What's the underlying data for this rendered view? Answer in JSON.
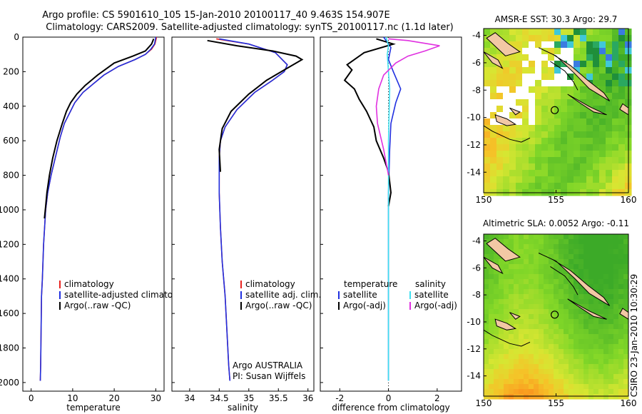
{
  "header": {
    "line1": "Argo profile: CS 5901610_105 15-Jan-2010 20100117_40 9.463S 154.907E",
    "line2": "Climatology: CARS2009. Satellite-adjusted climatology: synTS_20100117.nc (1.1d later)"
  },
  "side_label": "CSIRO 23-Jan-2010 10:30:29",
  "colors": {
    "red": "#e8231f",
    "blue": "#2030e0",
    "black": "#000000",
    "cyan": "#40e0f0",
    "magenta": "#e030e0"
  },
  "chart_data": [
    {
      "type": "line",
      "panel": "temperature",
      "xlabel": "temperature",
      "ylabel": "",
      "xlim": [
        -2,
        32
      ],
      "ylim": [
        2050,
        0
      ],
      "xticks": [
        "0",
        "10",
        "20",
        "30"
      ],
      "yticks": [
        "0",
        "200",
        "400",
        "600",
        "800",
        "1000",
        "1200",
        "1400",
        "1600",
        "1800",
        "2000"
      ],
      "legend": [
        "climatology",
        "satellite-adjusted climatology",
        "Argo(..raw -QC)"
      ],
      "series": [
        {
          "name": "climatology",
          "color": "red",
          "x": [
            30.2,
            29.8,
            29.0,
            27.5,
            25.0,
            21.0,
            17.5,
            15.0,
            12.5,
            10.5,
            8.0,
            7.0,
            5.8,
            4.8,
            4.0,
            3.5,
            3.0,
            2.7,
            2.5,
            2.4,
            2.3,
            2.2
          ],
          "y": [
            0,
            40,
            70,
            100,
            130,
            170,
            220,
            270,
            320,
            380,
            500,
            580,
            700,
            800,
            900,
            1000,
            1200,
            1400,
            1500,
            1700,
            1900,
            1990
          ]
        },
        {
          "name": "satellite-adjusted climatology",
          "color": "blue",
          "x": [
            30.0,
            29.7,
            28.8,
            27.5,
            25.0,
            21.0,
            17.5,
            15.0,
            12.5,
            10.5,
            8.0,
            7.0,
            5.8,
            4.8,
            4.0,
            3.5,
            3.0,
            2.7,
            2.5,
            2.4,
            2.3,
            2.2
          ],
          "y": [
            0,
            40,
            70,
            100,
            130,
            170,
            220,
            270,
            320,
            380,
            500,
            580,
            700,
            800,
            900,
            1000,
            1200,
            1400,
            1500,
            1700,
            1900,
            1990
          ]
        },
        {
          "name": "Argo(..raw -QC)",
          "color": "black",
          "x": [
            29.5,
            29.0,
            27.5,
            24.5,
            20.0,
            16.0,
            13.0,
            11.0,
            9.5,
            8.5,
            7.5,
            6.2,
            5.2,
            4.4,
            3.8,
            3.5,
            3.2
          ],
          "y": [
            10,
            40,
            80,
            110,
            150,
            220,
            280,
            330,
            380,
            430,
            500,
            600,
            700,
            800,
            900,
            980,
            1050
          ]
        }
      ]
    },
    {
      "type": "line",
      "panel": "salinity",
      "xlabel": "salinity",
      "ylabel": "",
      "xlim": [
        33.7,
        36.1
      ],
      "ylim": [
        2050,
        0
      ],
      "xticks": [
        "34",
        "34.5",
        "35",
        "35.5",
        "36"
      ],
      "legend": [
        "climatology",
        "satellite adj. clim.",
        "Argo(..raw -QC)"
      ],
      "annotation": [
        "Argo AUSTRALIA",
        "PI: Susan Wijffels"
      ],
      "series": [
        {
          "name": "climatology",
          "color": "red",
          "x": [
            34.45,
            35.0,
            35.45,
            35.65,
            35.6,
            35.4,
            35.1,
            34.8,
            34.6,
            34.52,
            34.5,
            34.5,
            34.52,
            34.55,
            34.6,
            34.63,
            34.66,
            34.68
          ],
          "y": [
            10,
            40,
            90,
            160,
            200,
            250,
            320,
            420,
            520,
            600,
            700,
            900,
            1100,
            1300,
            1500,
            1700,
            1900,
            1990
          ]
        },
        {
          "name": "satellite adj. clim.",
          "color": "blue",
          "x": [
            34.5,
            35.0,
            35.45,
            35.65,
            35.6,
            35.4,
            35.1,
            34.8,
            34.6,
            34.52,
            34.5,
            34.5,
            34.52,
            34.55,
            34.6,
            34.63,
            34.66,
            34.68
          ],
          "y": [
            10,
            40,
            90,
            160,
            200,
            250,
            320,
            420,
            520,
            600,
            700,
            900,
            1100,
            1300,
            1500,
            1700,
            1900,
            1990
          ]
        },
        {
          "name": "Argo(..raw -QC)",
          "color": "black",
          "x": [
            34.3,
            34.8,
            35.4,
            35.8,
            35.9,
            35.7,
            35.3,
            35.0,
            34.7,
            34.55,
            34.5,
            34.52
          ],
          "y": [
            20,
            50,
            80,
            110,
            130,
            170,
            250,
            330,
            430,
            530,
            650,
            780
          ]
        }
      ]
    },
    {
      "type": "line",
      "panel": "difference",
      "xlabel": "difference from climatology",
      "ylabel": "",
      "xlim": [
        -2.8,
        3.0
      ],
      "ylim": [
        2050,
        0
      ],
      "xticks": [
        "-2",
        "0",
        "2"
      ],
      "legend_left": [
        "temperature",
        "satellite",
        "Argo(-adj)"
      ],
      "legend_right": [
        "salinity",
        "satellite",
        "Argo(-adj)"
      ],
      "series": [
        {
          "name": "temperature satellite",
          "color": "blue",
          "x": [
            -0.2,
            0.1,
            0.0,
            0.2,
            0.5,
            0.3,
            0.1,
            0.05,
            0.0,
            0.0
          ],
          "y": [
            0,
            60,
            130,
            200,
            300,
            380,
            500,
            650,
            900,
            1990
          ]
        },
        {
          "name": "temperature Argo(-adj)",
          "color": "black",
          "x": [
            -0.5,
            0.2,
            -1.0,
            -1.7,
            -1.5,
            -1.8,
            -1.4,
            -1.2,
            -0.9,
            -0.6,
            -0.5,
            -0.2,
            0.0,
            0.1,
            0.0
          ],
          "y": [
            10,
            40,
            90,
            160,
            190,
            250,
            300,
            360,
            430,
            520,
            600,
            700,
            780,
            900,
            980
          ]
        },
        {
          "name": "salinity satellite",
          "color": "cyan",
          "x": [
            -0.1,
            0.0,
            -0.05,
            0.05,
            0.0,
            0.0,
            0.0
          ],
          "y": [
            0,
            50,
            100,
            300,
            600,
            1000,
            1990
          ]
        },
        {
          "name": "salinity Argo(-adj)",
          "color": "magenta",
          "x": [
            0.0,
            0.8,
            2.1,
            1.5,
            0.8,
            0.3,
            -0.2,
            -0.4,
            -0.5,
            -0.45,
            -0.2,
            0.0
          ],
          "y": [
            10,
            20,
            50,
            80,
            110,
            150,
            220,
            300,
            400,
            500,
            650,
            800
          ]
        }
      ]
    },
    {
      "type": "heatmap",
      "panel": "sst-map",
      "title": "AMSR-E SST: 30.3 Argo: 29.7",
      "xticks": [
        "150",
        "155",
        "160"
      ],
      "yticks": [
        "-4",
        "-6",
        "-8",
        "-10",
        "-12",
        "-14"
      ],
      "xlim": [
        150,
        160
      ],
      "ylim": [
        -15.5,
        -3.5
      ],
      "marker": {
        "lon": 154.907,
        "lat": -9.463
      }
    },
    {
      "type": "heatmap",
      "panel": "sla-map",
      "title": "Altimetric SLA: 0.0052 Argo: -0.11",
      "xticks": [
        "150",
        "155",
        "160"
      ],
      "yticks": [
        "-4",
        "-6",
        "-8",
        "-10",
        "-12",
        "-14"
      ],
      "xlim": [
        150,
        160
      ],
      "ylim": [
        -15.5,
        -3.5
      ],
      "marker": {
        "lon": 154.907,
        "lat": -9.463
      }
    }
  ]
}
